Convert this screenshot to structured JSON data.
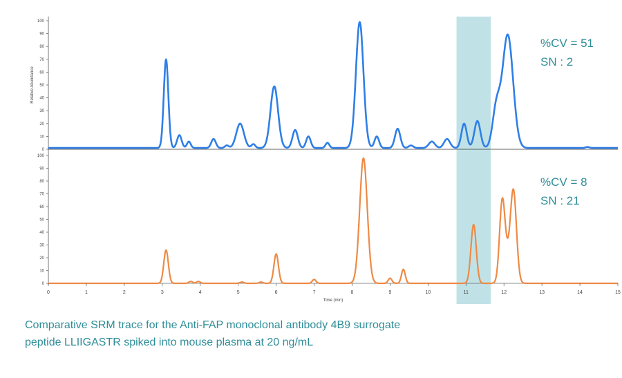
{
  "caption": {
    "line1": "Comparative SRM trace for the Anti-FAP monoclonal antibody 4B9 surrogate",
    "line2": "peptide LLIIGASTR spiked into mouse plasma at 20 ng/mL"
  },
  "colors": {
    "top_trace": "#2f7fe6",
    "bottom_trace": "#ee8a45",
    "highlight": "#b5dde3",
    "annotation_text": "#2f8e99"
  },
  "chart_data": {
    "type": "line",
    "xlabel": "Time (min)",
    "ylabel": "Relative Abundance",
    "xlim": [
      0,
      15
    ],
    "ylim": [
      0,
      100
    ],
    "x_ticks": [
      "0",
      "1",
      "2",
      "3",
      "4",
      "5",
      "6",
      "7",
      "8",
      "9",
      "10",
      "11",
      "12",
      "13",
      "14",
      "15"
    ],
    "y_ticks": [
      "0",
      "10",
      "20",
      "30",
      "40",
      "50",
      "60",
      "70",
      "80",
      "90",
      "100"
    ],
    "highlight_region": [
      10.75,
      11.65
    ],
    "panels": [
      {
        "name": "top",
        "annotation": [
          "%CV = 51",
          "SN : 2"
        ],
        "baseline": 1,
        "peaks": [
          {
            "x": 3.1,
            "height": 69,
            "width": 0.06
          },
          {
            "x": 3.45,
            "height": 10,
            "width": 0.06
          },
          {
            "x": 3.7,
            "height": 5,
            "width": 0.05
          },
          {
            "x": 4.35,
            "height": 7,
            "width": 0.06
          },
          {
            "x": 4.7,
            "height": 2,
            "width": 0.05
          },
          {
            "x": 5.05,
            "height": 19,
            "width": 0.1
          },
          {
            "x": 5.4,
            "height": 3,
            "width": 0.05
          },
          {
            "x": 5.95,
            "height": 48,
            "width": 0.1
          },
          {
            "x": 6.5,
            "height": 14,
            "width": 0.07
          },
          {
            "x": 6.85,
            "height": 9,
            "width": 0.06
          },
          {
            "x": 7.35,
            "height": 4,
            "width": 0.05
          },
          {
            "x": 8.2,
            "height": 98,
            "width": 0.1
          },
          {
            "x": 8.65,
            "height": 9,
            "width": 0.06
          },
          {
            "x": 9.2,
            "height": 15,
            "width": 0.07
          },
          {
            "x": 9.55,
            "height": 2,
            "width": 0.06
          },
          {
            "x": 10.1,
            "height": 5,
            "width": 0.08
          },
          {
            "x": 10.5,
            "height": 7,
            "width": 0.08
          },
          {
            "x": 10.95,
            "height": 19,
            "width": 0.07
          },
          {
            "x": 11.3,
            "height": 21,
            "width": 0.08
          },
          {
            "x": 11.8,
            "height": 30,
            "width": 0.1
          },
          {
            "x": 12.1,
            "height": 88,
            "width": 0.14
          },
          {
            "x": 14.2,
            "height": 0.8,
            "width": 0.05
          }
        ]
      },
      {
        "name": "bottom",
        "annotation": [
          "%CV = 8",
          "SN : 21"
        ],
        "baseline": 0,
        "peaks": [
          {
            "x": 3.1,
            "height": 26,
            "width": 0.06
          },
          {
            "x": 3.75,
            "height": 1.5,
            "width": 0.05
          },
          {
            "x": 3.95,
            "height": 1.5,
            "width": 0.05
          },
          {
            "x": 5.1,
            "height": 1,
            "width": 0.05
          },
          {
            "x": 5.6,
            "height": 1,
            "width": 0.05
          },
          {
            "x": 6.0,
            "height": 23,
            "width": 0.06
          },
          {
            "x": 7.0,
            "height": 3,
            "width": 0.05
          },
          {
            "x": 8.3,
            "height": 98,
            "width": 0.1
          },
          {
            "x": 9.0,
            "height": 4,
            "width": 0.05
          },
          {
            "x": 9.35,
            "height": 11,
            "width": 0.05
          },
          {
            "x": 11.2,
            "height": 46,
            "width": 0.07
          },
          {
            "x": 11.95,
            "height": 54,
            "width": 0.07
          },
          {
            "x": 12.25,
            "height": 71,
            "width": 0.08
          },
          {
            "x": 12.05,
            "height": 20,
            "width": 0.1
          }
        ]
      }
    ]
  }
}
